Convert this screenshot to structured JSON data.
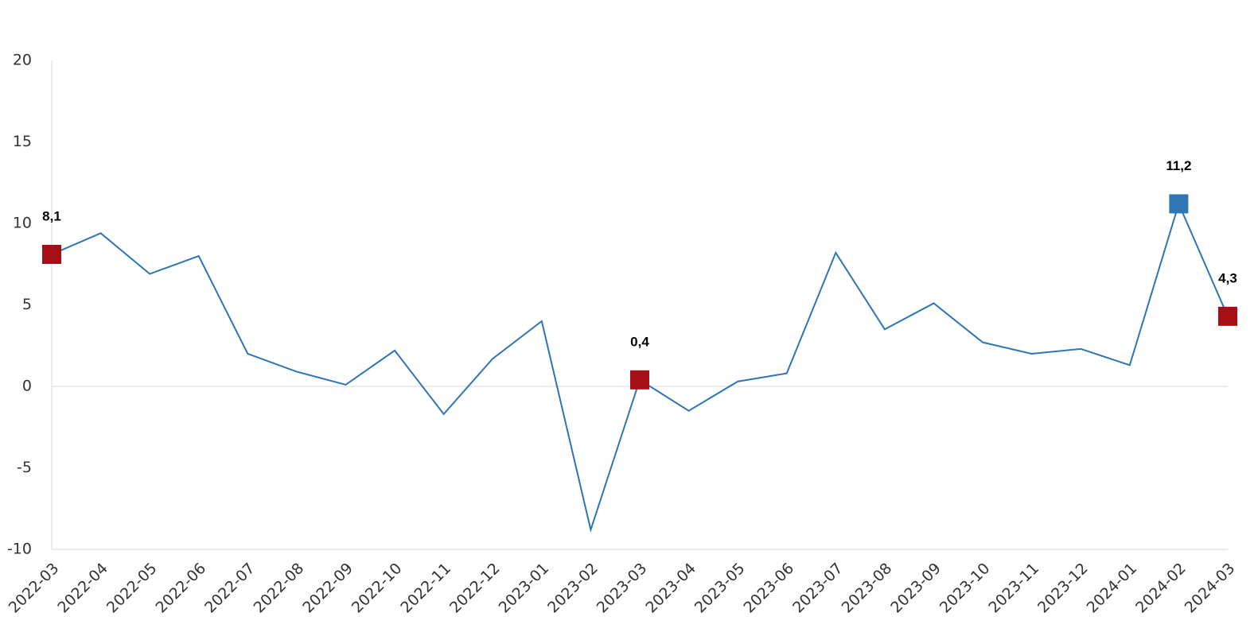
{
  "chart_data": {
    "type": "line",
    "categories": [
      "2022-03",
      "2022-04",
      "2022-05",
      "2022-06",
      "2022-07",
      "2022-08",
      "2022-09",
      "2022-10",
      "2022-11",
      "2022-12",
      "2023-01",
      "2023-02",
      "2023-03",
      "2023-04",
      "2023-05",
      "2023-06",
      "2023-07",
      "2023-08",
      "2023-09",
      "2023-10",
      "2023-11",
      "2023-12",
      "2024-01",
      "2024-02",
      "2024-03"
    ],
    "series": [
      {
        "color": "#2e75b6",
        "values": [
          8.1,
          9.4,
          6.9,
          8.0,
          2.0,
          0.9,
          0.1,
          2.2,
          -1.7,
          1.7,
          4.0,
          -8.8,
          0.4,
          -1.5,
          0.3,
          0.8,
          8.2,
          3.5,
          5.1,
          2.7,
          2.0,
          2.3,
          1.3,
          11.2,
          4.3
        ],
        "value_labels": [
          "8,1",
          null,
          null,
          null,
          null,
          null,
          null,
          null,
          null,
          null,
          null,
          null,
          "0,4",
          null,
          null,
          null,
          null,
          null,
          null,
          null,
          null,
          null,
          null,
          "11,2",
          "4,3"
        ],
        "marker_colors": [
          "#a50f15",
          null,
          null,
          null,
          null,
          null,
          null,
          null,
          null,
          null,
          null,
          null,
          "#a50f15",
          null,
          null,
          null,
          null,
          null,
          null,
          null,
          null,
          null,
          null,
          "#2e75b6",
          "#a50f15"
        ]
      }
    ],
    "ylim": [
      -10,
      20
    ],
    "yticks": [
      -10,
      -5,
      0,
      5,
      10,
      15,
      20
    ]
  }
}
